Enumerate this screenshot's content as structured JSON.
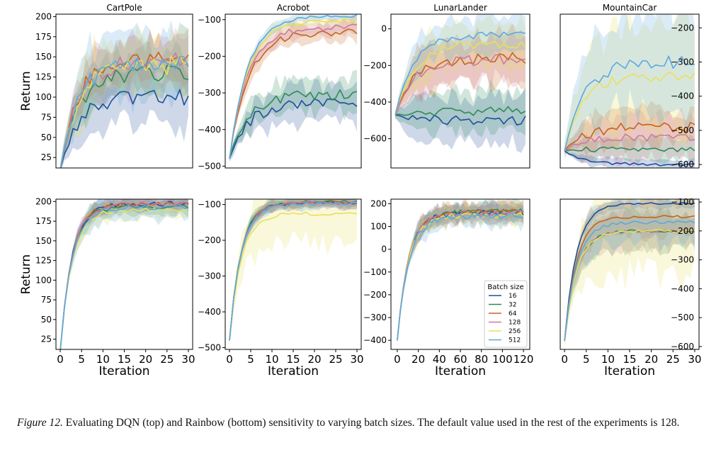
{
  "caption": {
    "label": "Figure 12.",
    "text": "Evaluating DQN (top) and Rainbow (bottom) sensitivity to varying batch sizes. The default value used in the rest of the experiments is 128."
  },
  "colors": {
    "16": "#1f4e9c",
    "32": "#2e8b57",
    "64": "#c8631c",
    "128": "#cc7aa0",
    "256": "#e8e05a",
    "512": "#5aa9e0"
  },
  "chart_data": {
    "type": "line",
    "legend": {
      "title": "Batch size",
      "entries": [
        "16",
        "32",
        "64",
        "128",
        "256",
        "512"
      ],
      "location": "LunarLander Rainbow panel, lower-right"
    },
    "rows": [
      {
        "name": "DQN (top)",
        "ylabel": "Return",
        "xlabel": "",
        "panels": [
          {
            "title": "CartPole",
            "xlim": [
              -1,
              31
            ],
            "ylim": [
              12,
              203
            ],
            "yticks": [
              25,
              50,
              75,
              100,
              125,
              150,
              175,
              200
            ],
            "ytick_labels": [
              "25",
              "50",
              "75",
              "100",
              "125",
              "150",
              "175",
              "200"
            ],
            "xticks": [],
            "xtick_labels": [],
            "axis_side": "left",
            "series": [
              {
                "name": "16",
                "start": 10,
                "end": 100,
                "noise": 10,
                "band": 35
              },
              {
                "name": "32",
                "start": 10,
                "end": 130,
                "noise": 10,
                "band": 25
              },
              {
                "name": "64",
                "start": 10,
                "end": 150,
                "noise": 10,
                "band": 25
              },
              {
                "name": "128",
                "start": 10,
                "end": 145,
                "noise": 10,
                "band": 30
              },
              {
                "name": "256",
                "start": 10,
                "end": 140,
                "noise": 12,
                "band": 35
              },
              {
                "name": "512",
                "start": 10,
                "end": 145,
                "noise": 12,
                "band": 40
              }
            ]
          },
          {
            "title": "Acrobot",
            "xlim": [
              -1,
              31
            ],
            "ylim": [
              -505,
              -85
            ],
            "yticks": [
              -500,
              -400,
              -300,
              -200,
              -100
            ],
            "ytick_labels": [
              "−500",
              "−400",
              "−300",
              "−200",
              "−100"
            ],
            "xticks": [],
            "xtick_labels": [],
            "axis_side": "left",
            "series": [
              {
                "name": "16",
                "start": -480,
                "end": -330,
                "noise": 15,
                "band": 50
              },
              {
                "name": "32",
                "start": -480,
                "end": -305,
                "noise": 15,
                "band": 45
              },
              {
                "name": "64",
                "start": -480,
                "end": -135,
                "noise": 10,
                "band": 25
              },
              {
                "name": "128",
                "start": -480,
                "end": -120,
                "noise": 8,
                "band": 20
              },
              {
                "name": "256",
                "start": -480,
                "end": -100,
                "noise": 6,
                "band": 15
              },
              {
                "name": "512",
                "start": -480,
                "end": -90,
                "noise": 5,
                "band": 12
              }
            ]
          },
          {
            "title": "LunarLander",
            "xlim": [
              -1,
              31
            ],
            "ylim": [
              -760,
              80
            ],
            "yticks": [
              -600,
              -400,
              -200,
              0
            ],
            "ytick_labels": [
              "−600",
              "−400",
              "−200",
              "0"
            ],
            "xticks": [],
            "xtick_labels": [],
            "axis_side": "left",
            "series": [
              {
                "name": "16",
                "start": -470,
                "end": -500,
                "noise": 25,
                "band": 120
              },
              {
                "name": "32",
                "start": -470,
                "end": -450,
                "noise": 25,
                "band": 110
              },
              {
                "name": "64",
                "start": -470,
                "end": -160,
                "noise": 30,
                "band": 120
              },
              {
                "name": "128",
                "start": -470,
                "end": -170,
                "noise": 30,
                "band": 120
              },
              {
                "name": "256",
                "start": -470,
                "end": -80,
                "noise": 25,
                "band": 110
              },
              {
                "name": "512",
                "start": -470,
                "end": -30,
                "noise": 20,
                "band": 100
              }
            ]
          },
          {
            "title": "MountainCar",
            "xlim": [
              -1,
              31
            ],
            "ylim": [
              -610,
              -160
            ],
            "yticks": [
              -600,
              -500,
              -400,
              -300,
              -200
            ],
            "ytick_labels": [
              "−600",
              "−500",
              "−400",
              "−300",
              "−200"
            ],
            "xticks": [],
            "xtick_labels": [],
            "axis_side": "right",
            "series": [
              {
                "name": "16",
                "start": -560,
                "end": -600,
                "noise": 5,
                "band": 15
              },
              {
                "name": "32",
                "start": -560,
                "end": -555,
                "noise": 8,
                "band": 30
              },
              {
                "name": "64",
                "start": -560,
                "end": -490,
                "noise": 15,
                "band": 50
              },
              {
                "name": "128",
                "start": -560,
                "end": -520,
                "noise": 12,
                "band": 60
              },
              {
                "name": "256",
                "start": -560,
                "end": -340,
                "noise": 15,
                "band": 150
              },
              {
                "name": "512",
                "start": -560,
                "end": -300,
                "noise": 20,
                "band": 140
              }
            ]
          }
        ]
      },
      {
        "name": "Rainbow (bottom)",
        "ylabel": "Return",
        "xlabel": "Iteration",
        "panels": [
          {
            "title": "",
            "xlim": [
              -1,
              31
            ],
            "ylim": [
              12,
              203
            ],
            "yticks": [
              25,
              50,
              75,
              100,
              125,
              150,
              175,
              200
            ],
            "ytick_labels": [
              "25",
              "50",
              "75",
              "100",
              "125",
              "150",
              "175",
              "200"
            ],
            "xticks": [
              0,
              5,
              10,
              15,
              20,
              25,
              30
            ],
            "xtick_labels": [
              "0",
              "5",
              "10",
              "15",
              "20",
              "25",
              "30"
            ],
            "axis_side": "left",
            "series": [
              {
                "name": "16",
                "start": 10,
                "end": 197,
                "noise": 3,
                "band": 8
              },
              {
                "name": "32",
                "start": 10,
                "end": 194,
                "noise": 3,
                "band": 10
              },
              {
                "name": "64",
                "start": 10,
                "end": 197,
                "noise": 3,
                "band": 8
              },
              {
                "name": "128",
                "start": 10,
                "end": 197,
                "noise": 3,
                "band": 8
              },
              {
                "name": "256",
                "start": 10,
                "end": 190,
                "noise": 3,
                "band": 12
              },
              {
                "name": "512",
                "start": 10,
                "end": 193,
                "noise": 3,
                "band": 15
              }
            ]
          },
          {
            "title": "",
            "xlim": [
              -1,
              31
            ],
            "ylim": [
              -505,
              -85
            ],
            "yticks": [
              -500,
              -400,
              -300,
              -200,
              -100
            ],
            "ytick_labels": [
              "−500",
              "−400",
              "−300",
              "−200",
              "−100"
            ],
            "xticks": [
              0,
              5,
              10,
              15,
              20,
              25,
              30
            ],
            "xtick_labels": [
              "0",
              "5",
              "10",
              "15",
              "20",
              "25",
              "30"
            ],
            "axis_side": "left",
            "series": [
              {
                "name": "16",
                "start": -480,
                "end": -95,
                "noise": 4,
                "band": 15
              },
              {
                "name": "32",
                "start": -480,
                "end": -92,
                "noise": 4,
                "band": 15
              },
              {
                "name": "64",
                "start": -480,
                "end": -95,
                "noise": 4,
                "band": 15
              },
              {
                "name": "128",
                "start": -480,
                "end": -95,
                "noise": 4,
                "band": 15
              },
              {
                "name": "256",
                "start": -480,
                "end": -125,
                "noise": 5,
                "band": 80
              },
              {
                "name": "512",
                "start": -480,
                "end": -98,
                "noise": 4,
                "band": 15
              }
            ]
          },
          {
            "title": "",
            "xlim": [
              -6,
              126
            ],
            "ylim": [
              -440,
              220
            ],
            "yticks": [
              -400,
              -300,
              -200,
              -100,
              0,
              100,
              200
            ],
            "ytick_labels": [
              "−400",
              "−300",
              "−200",
              "−100",
              "0",
              "100",
              "200"
            ],
            "xticks": [
              0,
              20,
              40,
              60,
              80,
              100,
              120
            ],
            "xtick_labels": [
              "0",
              "20",
              "40",
              "60",
              "80",
              "100",
              "120"
            ],
            "axis_side": "left",
            "series": [
              {
                "name": "16",
                "start": -400,
                "end": 160,
                "noise": 12,
                "band": 40
              },
              {
                "name": "32",
                "start": -400,
                "end": 165,
                "noise": 12,
                "band": 40
              },
              {
                "name": "64",
                "start": -400,
                "end": 165,
                "noise": 12,
                "band": 40
              },
              {
                "name": "128",
                "start": -400,
                "end": 160,
                "noise": 12,
                "band": 40
              },
              {
                "name": "256",
                "start": -400,
                "end": 150,
                "noise": 12,
                "band": 45
              },
              {
                "name": "512",
                "start": -400,
                "end": 145,
                "noise": 12,
                "band": 45
              }
            ]
          },
          {
            "title": "",
            "xlim": [
              -1,
              31
            ],
            "ylim": [
              -610,
              -90
            ],
            "yticks": [
              -600,
              -500,
              -400,
              -300,
              -200,
              -100
            ],
            "ytick_labels": [
              "−600",
              "−500",
              "−400",
              "−300",
              "−200",
              "−100"
            ],
            "xticks": [
              0,
              5,
              10,
              15,
              20,
              25,
              30
            ],
            "xtick_labels": [
              "0",
              "5",
              "10",
              "15",
              "20",
              "25",
              "30"
            ],
            "axis_side": "right",
            "series": [
              {
                "name": "16",
                "start": -580,
                "end": -105,
                "noise": 3,
                "band": 15
              },
              {
                "name": "32",
                "start": -580,
                "end": -200,
                "noise": 5,
                "band": 60
              },
              {
                "name": "64",
                "start": -580,
                "end": -150,
                "noise": 5,
                "band": 60
              },
              {
                "name": "128",
                "start": -580,
                "end": -200,
                "noise": 5,
                "band": 60
              },
              {
                "name": "256",
                "start": -580,
                "end": -200,
                "noise": 5,
                "band": 150
              },
              {
                "name": "512",
                "start": -580,
                "end": -170,
                "noise": 6,
                "band": 70
              }
            ]
          }
        ]
      }
    ]
  }
}
